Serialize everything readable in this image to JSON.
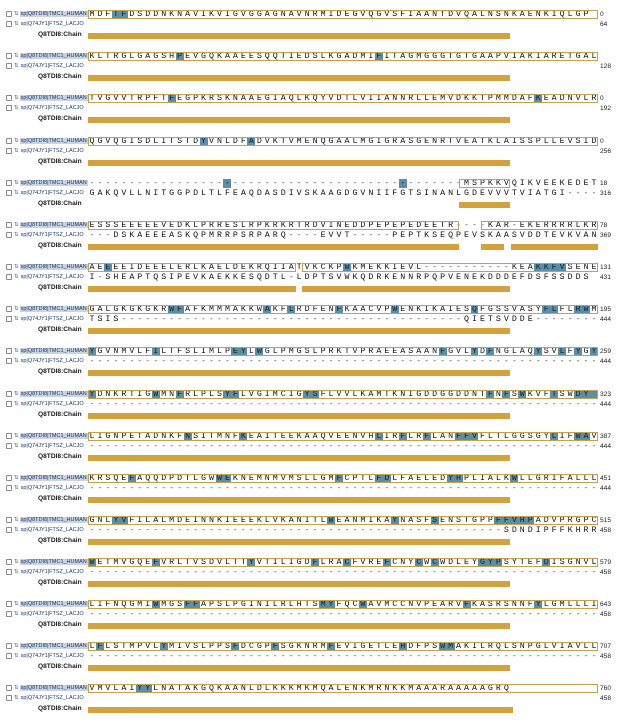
{
  "seqA": {
    "label": "sp|Q8TDI8|TMC1_HUMAN",
    "tag": "⇅"
  },
  "seqB": {
    "label": "sp|Q74JY1|FTSZ_LACJO",
    "tag": "⇅"
  },
  "chain_label": "Q8TDI8:Chain",
  "colors": {
    "highlight": "#5b8fa8",
    "bar": "#d4a23c",
    "box": "#c8a04a"
  },
  "blocks": [
    {
      "a": "MDFTFDSDDNKNAVIKVIGVGGAGNAVNRMIDEGVQGVSFIAANTDVQALNSNKAENKIQLGP",
      "b": "",
      "end_a": "0",
      "end_b": "64",
      "hl": [
        3,
        4
      ]
    },
    {
      "a": "KLTRGLGAGSHPEVGQKAAEESQQTIEDSLKGADMIFITAGMGGGTGTGAAPVIAKIARETGAL",
      "b": "",
      "end_a": "",
      "end_b": "128",
      "hl": [
        11,
        36
      ]
    },
    {
      "a": "TVGVVTRPFTFEGPKRSKNAAEGIAQLKQYVDTLVIIANNRLLEMVDKKTPMMDAFKEADNVLR",
      "b": "",
      "end_a": "0",
      "end_b": "192",
      "hl": [
        10,
        56
      ]
    },
    {
      "a": "QGVQGISDLITSTDYVNLDFADVKTVMENQGAALMGIGRASGENRTVEATKLAISSPLLEVSID",
      "b": "",
      "end_a": "0",
      "end_b": "256",
      "hl": [
        14,
        20
      ]
    },
    {
      "a": "-----------------------------------------------MSPKKVQIKVEEKEDETE",
      "b": "GAKQVLLNITGGPDLTLFEAQDASDIVSKAAGDGVNIIFGTSINANLGDEVVVTVIATGI----",
      "end_a": "18",
      "end_b": "316",
      "hl": [
        17,
        39
      ]
    },
    {
      "a": "ESSSEEEEEVEDKLPRRESLRPKRKRTRDVINEDDPEPEPEDEETR----KAR-EKERRRRLKRG",
      "b": "---DSKAEEEASKQPMRRPSRPARQ----EVVT-----PEPTKSEQPEVSKAASVDDTEVKVANT",
      "end_a": "78",
      "end_b": "369",
      "hl": []
    },
    {
      "a": "AEEEEIDEEELERLKAELDEKRQIIATVKCKPWKMEKKIEVL-----------KEAKKFVSENE",
      "b": "I-SHEAPTQSIPEVKAEKKESQDTL-LDPTSVWKQDRKENNRPQPVENEKDDDEFDSFSSDDS",
      "end_a": "131",
      "end_b": "431",
      "hl": [
        2,
        32,
        56,
        57,
        58,
        59
      ]
    },
    {
      "a": "GALGKGKGKRWFAFKMMMAKKWAKFLRDFENFKAACVPWENKIKAIESQFGSSVASYFLFLRWM",
      "b": "TSIS-------------------------------------------QIETSVDDE--------",
      "end_a": "195",
      "end_b": "444",
      "hl": [
        10,
        11,
        22,
        25,
        31,
        38,
        48,
        57,
        58,
        61,
        62
      ]
    },
    {
      "a": "YGVNMVLFILTFSLIMLPEYLWGLPMGSLPRKTVPRAEEASAANFGVLYDFNGLAQYSVLFYGY",
      "b": "----------------------------------------------------------------",
      "end_a": "259",
      "end_b": "444",
      "hl": [
        0,
        8,
        18,
        19,
        21,
        44,
        48,
        50,
        56,
        59,
        61,
        63
      ]
    },
    {
      "a": "YDNKRTIGWMNFRLPLSYFLVGIMCIGYSFLVVLKAMTKNIGDDGGDDNTFNFSWKVFTSWDY",
      "b": "----------------------------------------------------------------",
      "end_a": "323",
      "end_b": "444",
      "hl": [
        0,
        8,
        11,
        17,
        18,
        27,
        28,
        50,
        52,
        54,
        58,
        61,
        62,
        63
      ]
    },
    {
      "a": "LIGNPETADNKFNSITMNFKEAITEEKAAQVEENVHLIRFLRFLANFFVFLTLGGSGYLIFWAV",
      "b": "----------------------------------------------------------------",
      "end_a": "387",
      "end_b": "444",
      "hl": [
        12,
        19,
        36,
        39,
        42,
        46,
        47,
        48,
        58,
        61,
        62
      ]
    },
    {
      "a": "KRSQEFAQQDPDTLGWWEKNEMNMVMSLLGMFCPTLFDLFAELEDYHPLIALKWLLGRIFALLL",
      "b": "----------------------------------------------------------------",
      "end_a": "451",
      "end_b": "444",
      "hl": [
        5,
        16,
        17,
        31,
        36,
        37,
        45,
        46,
        53
      ]
    },
    {
      "a": "GNLYVFILALMDEINNKIEEEKLVKANITLWEANMIKAYNASFSENSTGPPFFVHPADVPRGPC",
      "b": "----------------------------------------------------SDNDIPFFKHRRQD",
      "end_a": "515",
      "end_b": "458",
      "hl": [
        3,
        4,
        30,
        38,
        43,
        51,
        52,
        53,
        54,
        55
      ]
    },
    {
      "a": "WETMVGQEFVRLTVSDVLTTYVTILIGDFLRACFVREFCNYCWCWDLEYGYPSYTEFDISGNVLA",
      "b": "----------------------------------------------------------------",
      "end_a": "579",
      "end_b": "458",
      "hl": [
        0,
        8,
        20,
        28,
        32,
        37,
        41,
        43,
        49,
        50,
        51,
        57
      ]
    },
    {
      "a": "LIFNQGMIWMGSFFAPSLPGINILRLHTSMYFQCWAVMCCNVPEARVFKASRSNNFYLGMLLLI",
      "b": "----------------------------------------------------------------",
      "end_a": "643",
      "end_b": "458",
      "hl": [
        8,
        12,
        13,
        29,
        30,
        34,
        47,
        56
      ]
    },
    {
      "a": "LFLSTMPVLYMIVSLPPSFDCGPFSGKNRMFEVIGETLEHDFPSWMAKILRQLSNPGLVIAVLL",
      "b": "----------------------------------------------------------------",
      "end_a": "707",
      "end_b": "458",
      "hl": [
        1,
        9,
        18,
        23,
        30,
        39,
        44,
        45
      ]
    },
    {
      "a": "VMVLAIYYLNATAKGQKAANLDLKKKMKMQALENKMRNKKMAAARAAAAAGRQ",
      "b": "",
      "end_a": "760",
      "end_b": "458",
      "hl": [
        6,
        7
      ]
    }
  ]
}
